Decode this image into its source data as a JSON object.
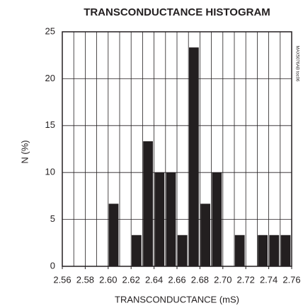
{
  "chart_data": {
    "type": "histogram",
    "title": "TRANSCONDUCTANCE HISTOGRAM",
    "xlabel": "TRANSCONDUCTANCE (mS)",
    "ylabel": "N (%)",
    "annotation": "MAX5076AB toc06",
    "bins": [
      2.56,
      2.57,
      2.58,
      2.59,
      2.6,
      2.61,
      2.62,
      2.63,
      2.64,
      2.65,
      2.66,
      2.67,
      2.68,
      2.69,
      2.7,
      2.71,
      2.72,
      2.73,
      2.74,
      2.75,
      2.76
    ],
    "values": [
      0,
      0,
      0,
      0,
      6.67,
      0,
      3.33,
      13.33,
      10,
      10,
      3.33,
      23.33,
      6.67,
      10,
      0,
      3.33,
      0,
      3.33,
      3.33,
      3.33
    ],
    "color": "#231f20",
    "xlim": [
      2.56,
      2.76
    ],
    "xticks": [
      2.56,
      2.58,
      {
        "value": 2.6,
        "label": "2.60"
      },
      2.62,
      2.64,
      2.66,
      2.68,
      {
        "value": 2.7,
        "label": "2.70"
      },
      2.72,
      2.74,
      2.76
    ],
    "ylim": [
      0,
      25
    ],
    "yticks": [
      0,
      5,
      10,
      15,
      20,
      25
    ],
    "grid": true
  }
}
